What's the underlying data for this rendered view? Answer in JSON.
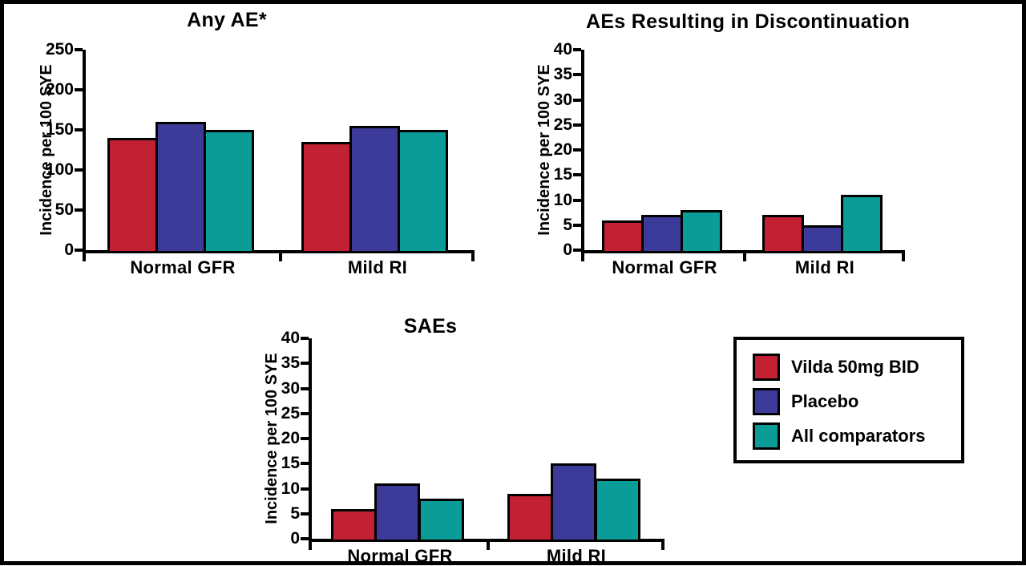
{
  "figure": {
    "background": "#ffffff",
    "frame_border_color": "#000000",
    "axis_color": "#000000"
  },
  "legend": {
    "items": [
      {
        "label": "Vilda 50mg BID",
        "color": "#c22033"
      },
      {
        "label": "Placebo",
        "color": "#3c3b9a"
      },
      {
        "label": "All comparators",
        "color": "#0c9c98"
      }
    ]
  },
  "chart_data": [
    {
      "type": "bar",
      "title": "Any AE*",
      "xlabel": "",
      "ylabel": "Incidence per 100 SYE",
      "ylim": [
        0,
        250
      ],
      "yticks": [
        0,
        50,
        100,
        150,
        200,
        250
      ],
      "categories": [
        "Normal GFR",
        "Mild RI"
      ],
      "series": [
        {
          "name": "Vilda 50mg BID",
          "color": "#c22033",
          "values": [
            140,
            135
          ]
        },
        {
          "name": "Placebo",
          "color": "#3c3b9a",
          "values": [
            160,
            155
          ]
        },
        {
          "name": "All comparators",
          "color": "#0c9c98",
          "values": [
            150,
            150
          ]
        }
      ],
      "grid": false,
      "legend_position": "shared-external"
    },
    {
      "type": "bar",
      "title": "AEs Resulting in Discontinuation",
      "xlabel": "",
      "ylabel": "Incidence per 100 SYE",
      "ylim": [
        0,
        40
      ],
      "yticks": [
        0,
        5,
        10,
        15,
        20,
        25,
        30,
        35,
        40
      ],
      "categories": [
        "Normal GFR",
        "Mild RI"
      ],
      "series": [
        {
          "name": "Vilda 50mg BID",
          "color": "#c22033",
          "values": [
            6,
            7
          ]
        },
        {
          "name": "Placebo",
          "color": "#3c3b9a",
          "values": [
            7,
            5
          ]
        },
        {
          "name": "All comparators",
          "color": "#0c9c98",
          "values": [
            8,
            11
          ]
        }
      ],
      "grid": false,
      "legend_position": "shared-external"
    },
    {
      "type": "bar",
      "title": "SAEs",
      "xlabel": "",
      "ylabel": "Incidence per 100 SYE",
      "ylim": [
        0,
        40
      ],
      "yticks": [
        0,
        5,
        10,
        15,
        20,
        25,
        30,
        35,
        40
      ],
      "categories": [
        "Normal GFR",
        "Mild RI"
      ],
      "series": [
        {
          "name": "Vilda 50mg BID",
          "color": "#c22033",
          "values": [
            6,
            9
          ]
        },
        {
          "name": "Placebo",
          "color": "#3c3b9a",
          "values": [
            11,
            15
          ]
        },
        {
          "name": "All comparators",
          "color": "#0c9c98",
          "values": [
            8,
            12
          ]
        }
      ],
      "grid": false,
      "legend_position": "shared-external"
    }
  ]
}
